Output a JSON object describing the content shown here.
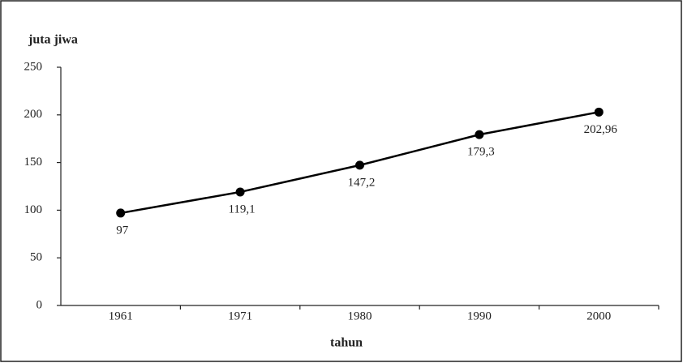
{
  "chart_data": {
    "type": "line",
    "y_label": "juta jiwa",
    "x_label": "tahun",
    "categories": [
      "1961",
      "1971",
      "1980",
      "1990",
      "2000"
    ],
    "values": [
      97,
      119.1,
      147.2,
      179.3,
      202.96
    ],
    "value_labels": [
      "97",
      "119,1",
      "147,2",
      "179,3",
      "202,96"
    ],
    "color": "#000000",
    "ylim": [
      0,
      250
    ],
    "yticks": [
      0,
      50,
      100,
      150,
      200,
      250
    ],
    "grid": false
  }
}
